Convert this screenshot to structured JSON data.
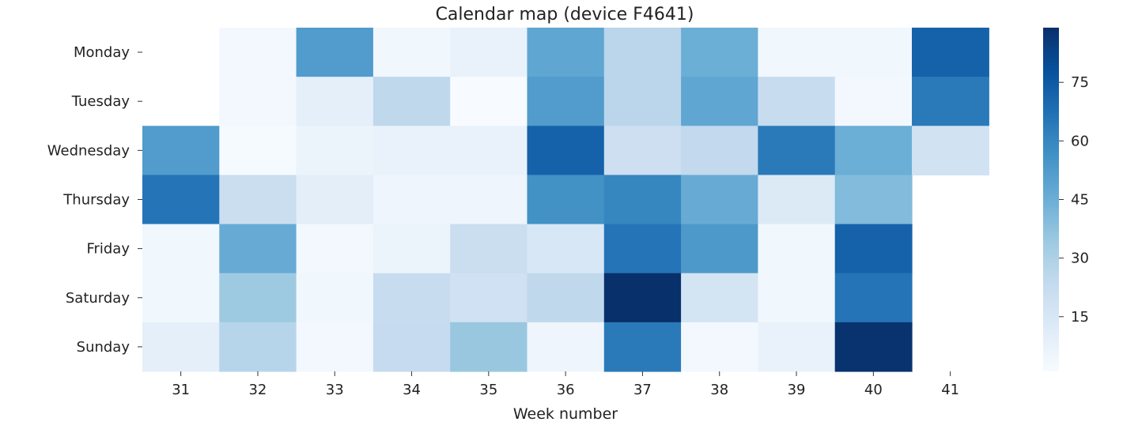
{
  "chart_data": {
    "type": "heatmap",
    "title": "Calendar map (device F4641)",
    "xlabel": "Week number",
    "ylabel": "",
    "x_categories": [
      "31",
      "32",
      "33",
      "34",
      "35",
      "36",
      "37",
      "38",
      "39",
      "40",
      "41"
    ],
    "y_categories": [
      "Monday",
      "Tuesday",
      "Wednesday",
      "Thursday",
      "Friday",
      "Saturday",
      "Sunday"
    ],
    "values": [
      [
        null,
        3,
        52,
        4,
        7,
        48,
        26,
        45,
        4,
        4,
        72
      ],
      [
        null,
        3,
        9,
        25,
        1,
        52,
        26,
        48,
        22,
        3,
        64
      ],
      [
        52,
        2,
        6,
        7,
        7,
        72,
        20,
        24,
        64,
        45,
        18
      ],
      [
        66,
        21,
        10,
        5,
        5,
        56,
        60,
        46,
        13,
        40,
        null
      ],
      [
        4,
        46,
        3,
        6,
        21,
        15,
        66,
        53,
        4,
        72,
        null
      ],
      [
        4,
        34,
        4,
        22,
        19,
        25,
        89,
        17,
        4,
        66,
        null
      ],
      [
        9,
        27,
        3,
        23,
        35,
        5,
        64,
        3,
        7,
        88,
        null
      ]
    ],
    "colormap": "Blues",
    "colorbar": {
      "min": 1,
      "max": 89,
      "ticks": [
        15,
        30,
        45,
        60,
        75
      ]
    },
    "grid": false
  }
}
